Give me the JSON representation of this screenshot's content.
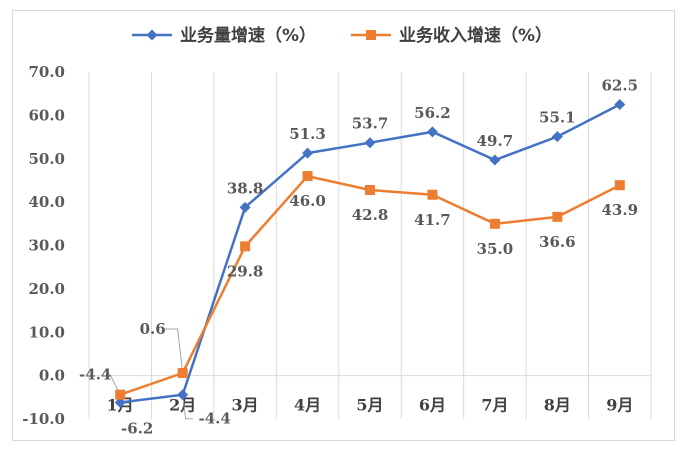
{
  "chart_data": {
    "type": "line",
    "categories": [
      "1月",
      "2月",
      "3月",
      "4月",
      "5月",
      "6月",
      "7月",
      "8月",
      "9月"
    ],
    "series": [
      {
        "name": "业务量增速（%）",
        "color": "#4472C4",
        "marker": "diamond",
        "values": [
          -6.2,
          -4.4,
          38.8,
          51.3,
          53.7,
          56.2,
          49.7,
          55.1,
          62.5
        ],
        "labels": [
          "-6.2",
          "-4.4",
          "38.8",
          "51.3",
          "53.7",
          "56.2",
          "49.7",
          "55.1",
          "62.5"
        ]
      },
      {
        "name": "业务收入增速（%）",
        "color": "#ED7D31",
        "marker": "square",
        "values": [
          -4.4,
          0.6,
          29.8,
          46.0,
          42.8,
          41.7,
          35.0,
          36.6,
          43.9
        ],
        "labels": [
          "-4.4",
          "0.6",
          "29.8",
          "46.0",
          "42.8",
          "41.7",
          "35.0",
          "36.6",
          "43.9"
        ]
      }
    ],
    "ylim": [
      -10,
      70
    ],
    "yticks": [
      "-10.0",
      "0.0",
      "10.0",
      "20.0",
      "30.0",
      "40.0",
      "50.0",
      "60.0",
      "70.0"
    ],
    "grid": "vertical",
    "legend": "top-center"
  }
}
